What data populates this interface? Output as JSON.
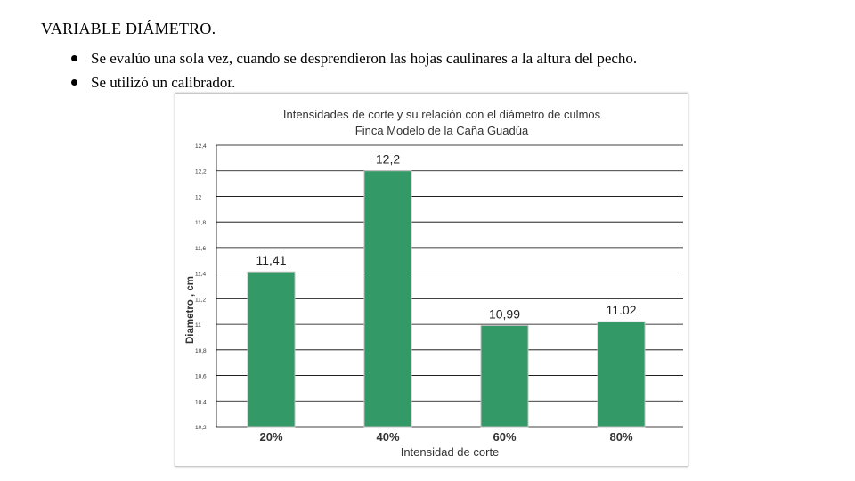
{
  "heading": "VARIABLE DIÁMETRO.",
  "bullets": [
    "Se evalúo una sola vez, cuando se desprendieron las hojas caulinares a la altura del pecho.",
    "Se utilizó un calibrador."
  ],
  "chart_data": {
    "type": "bar",
    "title": "Intensidades de corte y su relación con el diámetro de culmos",
    "subtitle": "Finca Modelo de la Caña Guadúa",
    "xlabel": "Intensidad de corte",
    "ylabel": "Diametro , cm",
    "categories": [
      "20%",
      "40%",
      "60%",
      "80%"
    ],
    "values": [
      11.41,
      12.2,
      10.99,
      11.02
    ],
    "data_labels": [
      "11,41",
      "12,2",
      "10,99",
      "11.02"
    ],
    "ylim": [
      10.2,
      12.4
    ],
    "yticks": [
      10.2,
      10.4,
      10.6,
      10.8,
      11,
      11.2,
      11.4,
      11.6,
      11.8,
      12,
      12.2,
      12.4
    ],
    "ytick_labels": [
      "10,2",
      "10,4",
      "10,6",
      "10,8",
      "11",
      "11,2",
      "11,4",
      "11,6",
      "11,8",
      "12",
      "12,2",
      "12,4"
    ],
    "grid": true,
    "bar_color": "#339966",
    "bar_edge_color": "#bfbfbf",
    "grid_color": "#000000"
  }
}
